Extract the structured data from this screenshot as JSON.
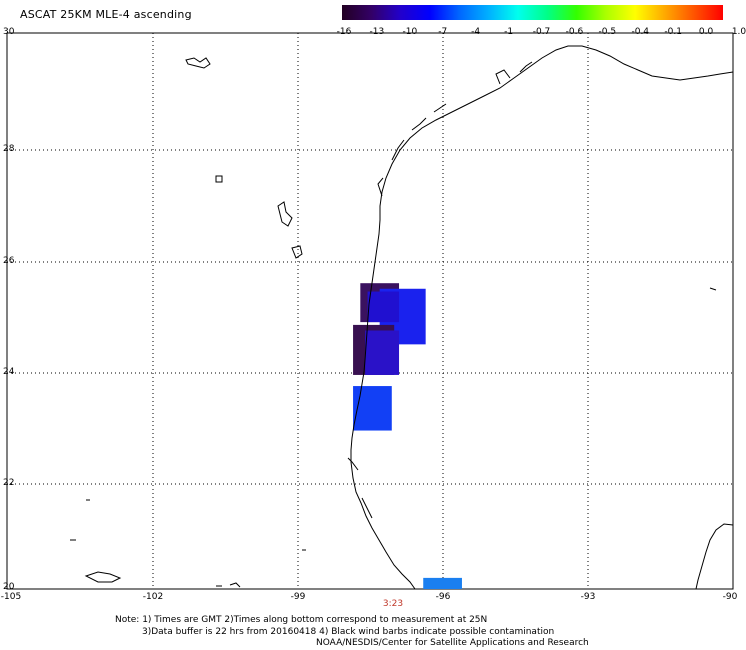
{
  "title": "ASCAT 25KM MLE-4 ascending",
  "colorbar": {
    "labels": [
      "-16",
      "-13",
      "-10",
      "-7",
      "-4",
      "-1",
      "-0.7",
      "-0.6",
      "-0.5",
      "-0.4",
      "-0.1",
      "0.0",
      "1.0"
    ],
    "colors": [
      "#220022",
      "#330066",
      "#2200cc",
      "#0000ff",
      "#0066ff",
      "#00b0ff",
      "#00ffee",
      "#00ff88",
      "#33ff00",
      "#aaff00",
      "#ffff00",
      "#ffaa00",
      "#ff5500",
      "#ff0000"
    ]
  },
  "axes": {
    "y_labels": [
      "30",
      "28",
      "26",
      "24",
      "22",
      "20"
    ],
    "x_labels": [
      "-105",
      "-102",
      "-99",
      "-96",
      "-93",
      "-90"
    ]
  },
  "time_marker": "3:23",
  "notes": {
    "line1": "Note: 1) Times are GMT 2)Times along bottom correspond to measurement at 25N",
    "line2": "3)Data buffer is 22 hrs from 20160418 4) Black wind barbs indicate possible contamination",
    "line3": "NOAA/NESDIS/Center for Satellite Applications and Research"
  },
  "map_data": {
    "lon_range": [
      -105,
      -90
    ],
    "lat_range": [
      20,
      30
    ],
    "swath_cells": [
      {
        "lon": [
          -97.7,
          -96.9
        ],
        "lat": [
          24.8,
          25.5
        ],
        "color": "#3a1260"
      },
      {
        "lon": [
          -97.3,
          -96.35
        ],
        "lat": [
          24.4,
          25.4
        ],
        "color": "#1a22ee"
      },
      {
        "lon": [
          -97.55,
          -96.9
        ],
        "lat": [
          24.8,
          25.35
        ],
        "color": "#2010d0"
      },
      {
        "lon": [
          -97.85,
          -97.0
        ],
        "lat": [
          23.85,
          24.75
        ],
        "color": "#381050"
      },
      {
        "lon": [
          -97.6,
          -96.9
        ],
        "lat": [
          23.85,
          24.65
        ],
        "color": "#2a12c8"
      },
      {
        "lon": [
          -97.85,
          -97.05
        ],
        "lat": [
          22.85,
          23.65
        ],
        "color": "#1240f5"
      },
      {
        "lon": [
          -96.4,
          -95.6
        ],
        "lat": [
          20.0,
          20.2
        ],
        "color": "#1a7ff0"
      }
    ]
  }
}
